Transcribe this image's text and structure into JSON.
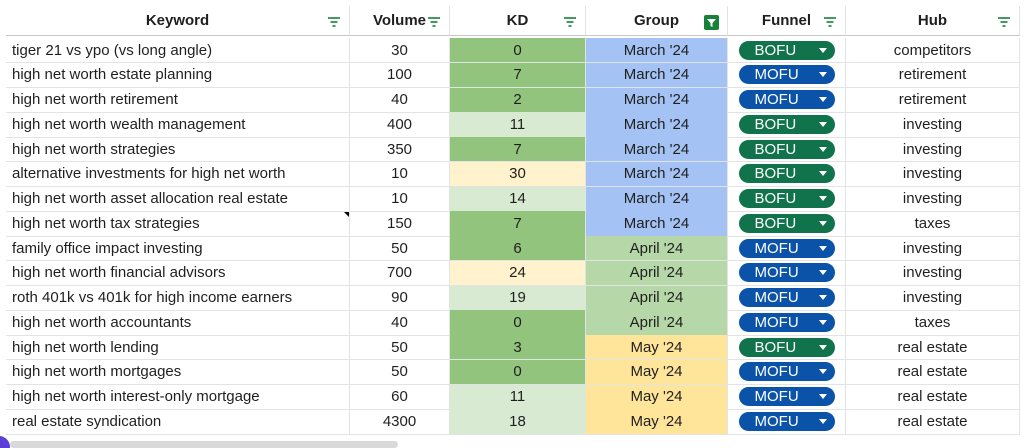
{
  "table": {
    "headers": [
      "Keyword",
      "Volume",
      "KD",
      "Group",
      "Funnel",
      "Hub"
    ],
    "group_colors": {
      "March '24": "#a4c2f4",
      "April '24": "#b6d7a8",
      "May '24": "#ffe599"
    },
    "funnel_colors": {
      "BOFU": "#11734b",
      "MOFU": "#0a53a8"
    },
    "rows": [
      {
        "keyword": "tiger 21 vs ypo (vs long angle)",
        "volume": 30,
        "kd": 0,
        "kd_color": "#93c47d",
        "group": "March '24",
        "funnel": "BOFU",
        "hub": "competitors"
      },
      {
        "keyword": "high net worth estate planning",
        "volume": 100,
        "kd": 7,
        "kd_color": "#93c47d",
        "group": "March '24",
        "funnel": "MOFU",
        "hub": "retirement"
      },
      {
        "keyword": "high net worth retirement",
        "volume": 40,
        "kd": 2,
        "kd_color": "#93c47d",
        "group": "March '24",
        "funnel": "MOFU",
        "hub": "retirement"
      },
      {
        "keyword": "high net worth wealth management",
        "volume": 400,
        "kd": 11,
        "kd_color": "#d9ead3",
        "group": "March '24",
        "funnel": "BOFU",
        "hub": "investing"
      },
      {
        "keyword": "high net worth strategies",
        "volume": 350,
        "kd": 7,
        "kd_color": "#93c47d",
        "group": "March '24",
        "funnel": "BOFU",
        "hub": "investing"
      },
      {
        "keyword": "alternative investments for high net worth",
        "volume": 10,
        "kd": 30,
        "kd_color": "#fff2cc",
        "group": "March '24",
        "funnel": "BOFU",
        "hub": "investing"
      },
      {
        "keyword": "high net worth asset allocation real estate",
        "volume": 10,
        "kd": 14,
        "kd_color": "#d9ead3",
        "group": "March '24",
        "funnel": "BOFU",
        "hub": "investing"
      },
      {
        "keyword": "high net worth tax strategies",
        "volume": 150,
        "kd": 7,
        "kd_color": "#93c47d",
        "group": "March '24",
        "funnel": "BOFU",
        "hub": "taxes"
      },
      {
        "keyword": "family office impact investing",
        "volume": 50,
        "kd": 6,
        "kd_color": "#93c47d",
        "group": "April '24",
        "funnel": "MOFU",
        "hub": "investing"
      },
      {
        "keyword": "high net worth financial advisors",
        "volume": 700,
        "kd": 24,
        "kd_color": "#fff2cc",
        "group": "April '24",
        "funnel": "MOFU",
        "hub": "investing"
      },
      {
        "keyword": "roth 401k vs 401k for high income earners",
        "volume": 90,
        "kd": 19,
        "kd_color": "#d9ead3",
        "group": "April '24",
        "funnel": "MOFU",
        "hub": "investing"
      },
      {
        "keyword": "high net worth accountants",
        "volume": 40,
        "kd": 0,
        "kd_color": "#93c47d",
        "group": "April '24",
        "funnel": "MOFU",
        "hub": "taxes"
      },
      {
        "keyword": "high net worth lending",
        "volume": 50,
        "kd": 3,
        "kd_color": "#93c47d",
        "group": "May '24",
        "funnel": "BOFU",
        "hub": "real estate"
      },
      {
        "keyword": "high net worth mortgages",
        "volume": 50,
        "kd": 0,
        "kd_color": "#93c47d",
        "group": "May '24",
        "funnel": "MOFU",
        "hub": "real estate"
      },
      {
        "keyword": "high net worth interest-only mortgage",
        "volume": 60,
        "kd": 11,
        "kd_color": "#d9ead3",
        "group": "May '24",
        "funnel": "MOFU",
        "hub": "real estate"
      },
      {
        "keyword": "real estate syndication",
        "volume": 4300,
        "kd": 18,
        "kd_color": "#d9ead3",
        "group": "May '24",
        "funnel": "MOFU",
        "hub": "real estate"
      }
    ]
  }
}
